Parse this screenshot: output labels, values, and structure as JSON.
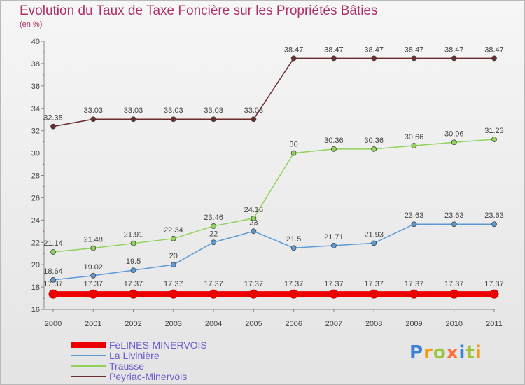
{
  "title": "Evolution du Taux de Taxe Foncière sur les Propriétés Bâties",
  "subtitle": "(en %)",
  "logo_text": "Proxiti",
  "chart_data": {
    "type": "line",
    "title": "Evolution du Taux de Taxe Foncière sur les Propriétés Bâties",
    "ylabel": "(en %)",
    "xlabel": "",
    "ylim": [
      16,
      40
    ],
    "yticks": [
      16,
      18,
      20,
      22,
      24,
      26,
      28,
      30,
      32,
      34,
      36,
      38,
      40
    ],
    "grid": false,
    "legend_position": "bottom-left",
    "x": [
      "2000",
      "2001",
      "2002",
      "2003",
      "2004",
      "2005",
      "2006",
      "2007",
      "2008",
      "2009",
      "2010",
      "2011"
    ],
    "series": [
      {
        "name": "FéLINES-MINERVOIS",
        "color": "#ee0000",
        "values": [
          17.37,
          17.37,
          17.37,
          17.37,
          17.37,
          17.37,
          17.37,
          17.37,
          17.37,
          17.37,
          17.37,
          17.37
        ],
        "labels": [
          "17.37",
          "17.37",
          "17.37",
          "17.37",
          "17.37",
          "17.37",
          "17.37",
          "17.37",
          "17.37",
          "17.37",
          "17.37",
          "17.37"
        ]
      },
      {
        "name": "La Livinière",
        "color": "#5b9bd5",
        "values": [
          18.64,
          19.02,
          19.5,
          20,
          22,
          23,
          21.5,
          21.71,
          21.93,
          23.63,
          23.63,
          23.63
        ],
        "labels": [
          "18.64",
          "19.02",
          "19.5",
          "20",
          "22",
          "23",
          "21.5",
          "21.71",
          "21.93",
          "23.63",
          "23.63",
          "23.63"
        ]
      },
      {
        "name": "Trausse",
        "color": "#8fd35a",
        "values": [
          21.14,
          21.48,
          21.91,
          22.34,
          23.46,
          24.16,
          30,
          30.36,
          30.36,
          30.66,
          30.96,
          31.23
        ],
        "labels": [
          "21.14",
          "21.48",
          "21.91",
          "22.34",
          "23.46",
          "24.16",
          "30",
          "30.36",
          "30.36",
          "30.66",
          "30.96",
          "31.23"
        ]
      },
      {
        "name": "Peyriac-Minervois",
        "color": "#6b2d2d",
        "values": [
          32.38,
          33.03,
          33.03,
          33.03,
          33.03,
          33.03,
          38.47,
          38.47,
          38.47,
          38.47,
          38.47,
          38.47
        ],
        "labels": [
          "32.38",
          "33.03",
          "33.03",
          "33.03",
          "33.03",
          "33.03",
          "38.47",
          "38.47",
          "38.47",
          "38.47",
          "38.47",
          "38.47"
        ]
      }
    ]
  }
}
